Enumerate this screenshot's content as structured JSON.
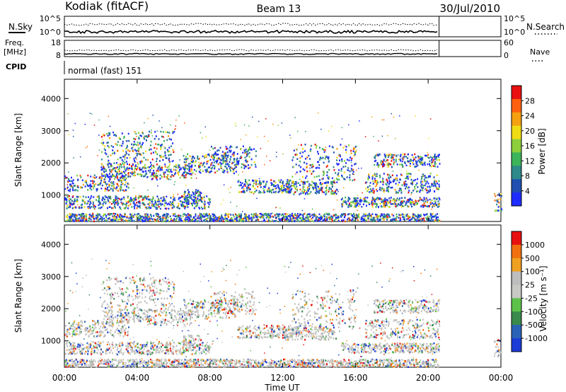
{
  "header": {
    "station": "Kodiak (fitACF)",
    "beam": "Beam 13",
    "date": "30/Jul/2010"
  },
  "top_panels": {
    "nsky": {
      "label": "N.Sky",
      "left_ticks": [
        "10^5",
        "10^0"
      ],
      "right_ticks": [
        "10^5",
        "10^0"
      ],
      "right_label": "N.Search"
    },
    "freq": {
      "label_top": "Freq.",
      "label_bottom": "[MHz]",
      "left_ticks": [
        "18",
        "8"
      ],
      "right_ticks": [
        "60",
        "0"
      ],
      "right_label": "Nave"
    },
    "cpid": {
      "label": "CPID",
      "value": "normal (fast) 151"
    }
  },
  "chart_data": [
    {
      "type": "heatmap",
      "title": "",
      "ylabel": "Slant Range [km]",
      "yticks": [
        1000,
        2000,
        3000,
        4000
      ],
      "ylim": [
        180,
        4600
      ],
      "xlim": [
        0,
        24
      ],
      "colorbar": {
        "label": "Power [dB]",
        "ticks": [
          "4",
          "8",
          "12",
          "16",
          "20",
          "24",
          "28"
        ],
        "colors": [
          "#1f2cff",
          "#1f4fb0",
          "#2e8a8a",
          "#3cb45a",
          "#8ccf3a",
          "#f0dc14",
          "#f5a010",
          "#ff6010",
          "#e81010"
        ]
      },
      "data_gap_hours": [
        20.65,
        23.55
      ]
    },
    {
      "type": "heatmap",
      "title": "",
      "ylabel": "Slant Range [km]",
      "yticks": [
        1000,
        2000,
        3000,
        4000
      ],
      "ylim": [
        180,
        4600
      ],
      "xlim": [
        0,
        24
      ],
      "colorbar": {
        "label": "Velocity [m s⁻¹]",
        "ticks": [
          "1000",
          "500",
          "100",
          "25",
          "-25",
          "-100",
          "-500",
          "-1000"
        ],
        "colors": [
          "#1a3bd6",
          "#2a62b8",
          "#3a8a4c",
          "#5cc24a",
          "#c8c8c4",
          "#bdbdbd",
          "#f0a020",
          "#f07010",
          "#e81010"
        ]
      },
      "data_gap_hours": [
        20.65,
        23.55
      ]
    }
  ],
  "x_axis": {
    "label": "Time UT",
    "ticks": [
      "00:00",
      "04:00",
      "08:00",
      "12:00",
      "16:00",
      "20:00",
      "00:00"
    ]
  }
}
